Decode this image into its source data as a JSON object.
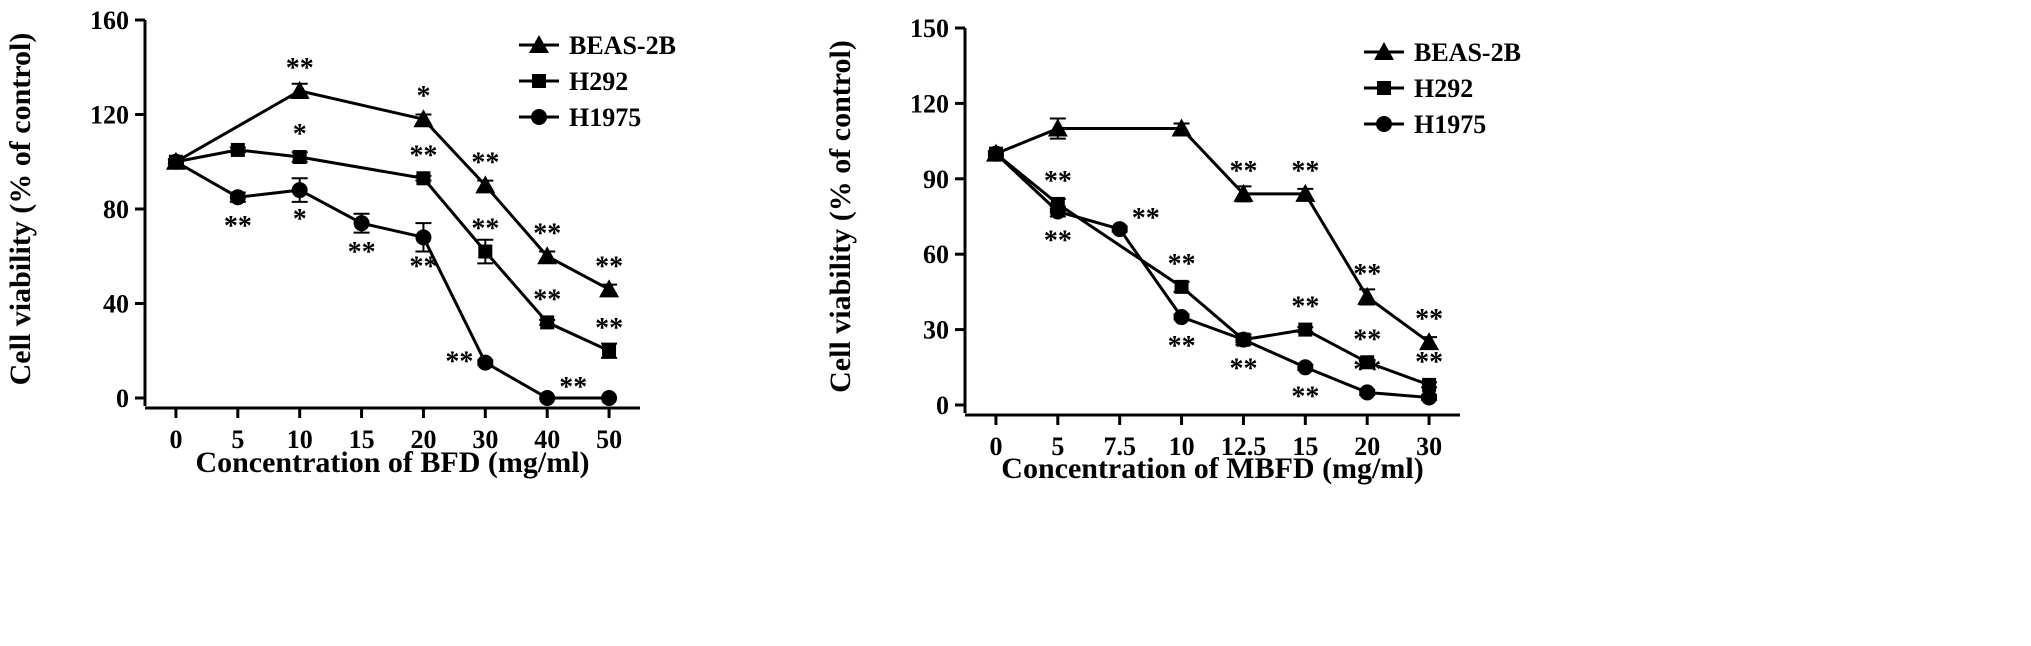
{
  "chart_data": [
    {
      "type": "line",
      "title": "",
      "xlabel": "Concentration of BFD (mg/ml)",
      "ylabel": "Cell viability (% of control)",
      "categories": [
        "0",
        "5",
        "10",
        "15",
        "20",
        "30",
        "40",
        "50"
      ],
      "ylim": [
        0,
        160
      ],
      "yticks": [
        "0",
        "40",
        "80",
        "120",
        "160"
      ],
      "legend_position": "top-right",
      "series": [
        {
          "name": "BEAS-2B",
          "marker": "triangle",
          "points": [
            {
              "x": "0",
              "y": 100,
              "err": 1,
              "ann": "",
              "annPos": "above"
            },
            {
              "x": "10",
              "y": 130,
              "err": 3,
              "ann": "**",
              "annPos": "above"
            },
            {
              "x": "20",
              "y": 118,
              "err": 2,
              "ann": "*",
              "annPos": "above"
            },
            {
              "x": "30",
              "y": 90,
              "err": 2,
              "ann": "**",
              "annPos": "above"
            },
            {
              "x": "40",
              "y": 60,
              "err": 2,
              "ann": "**",
              "annPos": "above"
            },
            {
              "x": "50",
              "y": 46,
              "err": 2,
              "ann": "**",
              "annPos": "above"
            }
          ]
        },
        {
          "name": "H292",
          "marker": "square",
          "points": [
            {
              "x": "0",
              "y": 100,
              "err": 1,
              "ann": "",
              "annPos": "above"
            },
            {
              "x": "5",
              "y": 105,
              "err": 1,
              "ann": "",
              "annPos": "above"
            },
            {
              "x": "10",
              "y": 102,
              "err": 2,
              "ann": "*",
              "annPos": "above"
            },
            {
              "x": "20",
              "y": 93,
              "err": 1,
              "ann": "**",
              "annPos": "above"
            },
            {
              "x": "30",
              "y": 62,
              "err": 5,
              "ann": "**",
              "annPos": "above"
            },
            {
              "x": "40",
              "y": 32,
              "err": 1,
              "ann": "**",
              "annPos": "above"
            },
            {
              "x": "50",
              "y": 20,
              "err": 3,
              "ann": "**",
              "annPos": "above"
            }
          ]
        },
        {
          "name": "H1975",
          "marker": "circle",
          "points": [
            {
              "x": "0",
              "y": 100,
              "err": 1,
              "ann": "",
              "annPos": "below"
            },
            {
              "x": "5",
              "y": 85,
              "err": 2,
              "ann": "**",
              "annPos": "below"
            },
            {
              "x": "10",
              "y": 88,
              "err": 5,
              "ann": "*",
              "annPos": "below"
            },
            {
              "x": "15",
              "y": 74,
              "err": 4,
              "ann": "**",
              "annPos": "below"
            },
            {
              "x": "20",
              "y": 68,
              "err": 6,
              "ann": "**",
              "annPos": "below"
            },
            {
              "x": "30",
              "y": 15,
              "err": 1,
              "ann": "**",
              "annPos": "left"
            },
            {
              "x": "40",
              "y": 0,
              "err": 0,
              "ann": "**",
              "annPos": "right"
            },
            {
              "x": "50",
              "y": 0,
              "err": 0,
              "ann": "",
              "annPos": "below"
            }
          ]
        }
      ]
    },
    {
      "type": "line",
      "title": "",
      "xlabel": "Concentration of MBFD (mg/ml)",
      "ylabel": "Cell viability (% of control)",
      "categories": [
        "0",
        "5",
        "7.5",
        "10",
        "12.5",
        "15",
        "20",
        "30"
      ],
      "ylim": [
        0,
        150
      ],
      "yticks": [
        "0",
        "30",
        "60",
        "90",
        "120",
        "150"
      ],
      "legend_position": "top-right",
      "series": [
        {
          "name": "BEAS-2B",
          "marker": "triangle",
          "points": [
            {
              "x": "0",
              "y": 100,
              "err": 1,
              "ann": "",
              "annPos": "above"
            },
            {
              "x": "5",
              "y": 110,
              "err": 4,
              "ann": "",
              "annPos": "above"
            },
            {
              "x": "10",
              "y": 110,
              "err": 2,
              "ann": "",
              "annPos": "above"
            },
            {
              "x": "12.5",
              "y": 84,
              "err": 3,
              "ann": "**",
              "annPos": "above"
            },
            {
              "x": "15",
              "y": 84,
              "err": 2,
              "ann": "**",
              "annPos": "above"
            },
            {
              "x": "20",
              "y": 43,
              "err": 3,
              "ann": "**",
              "annPos": "above"
            },
            {
              "x": "30",
              "y": 25,
              "err": 2,
              "ann": "**",
              "annPos": "above"
            }
          ]
        },
        {
          "name": "H292",
          "marker": "square",
          "points": [
            {
              "x": "0",
              "y": 100,
              "err": 1,
              "ann": "",
              "annPos": "above"
            },
            {
              "x": "5",
              "y": 80,
              "err": 2,
              "ann": "**",
              "annPos": "above"
            },
            {
              "x": "10",
              "y": 47,
              "err": 2,
              "ann": "**",
              "annPos": "above"
            },
            {
              "x": "12.5",
              "y": 26,
              "err": 1,
              "ann": "",
              "annPos": "above"
            },
            {
              "x": "15",
              "y": 30,
              "err": 1,
              "ann": "**",
              "annPos": "above"
            },
            {
              "x": "20",
              "y": 17,
              "err": 1,
              "ann": "**",
              "annPos": "above"
            },
            {
              "x": "30",
              "y": 8,
              "err": 1,
              "ann": "**",
              "annPos": "above"
            }
          ]
        },
        {
          "name": "H1975",
          "marker": "circle",
          "points": [
            {
              "x": "0",
              "y": 100,
              "err": 1,
              "ann": "",
              "annPos": "below"
            },
            {
              "x": "5",
              "y": 77,
              "err": 2,
              "ann": "**",
              "annPos": "below"
            },
            {
              "x": "7.5",
              "y": 70,
              "err": 1,
              "ann": "**",
              "annPos": "right"
            },
            {
              "x": "10",
              "y": 35,
              "err": 1,
              "ann": "**",
              "annPos": "below"
            },
            {
              "x": "12.5",
              "y": 26,
              "err": 2,
              "ann": "**",
              "annPos": "below"
            },
            {
              "x": "15",
              "y": 15,
              "err": 1,
              "ann": "**",
              "annPos": "below"
            },
            {
              "x": "20",
              "y": 5,
              "err": 1,
              "ann": "**",
              "annPos": "above"
            },
            {
              "x": "30",
              "y": 3,
              "err": 1,
              "ann": "",
              "annPos": "below"
            }
          ]
        }
      ]
    }
  ]
}
